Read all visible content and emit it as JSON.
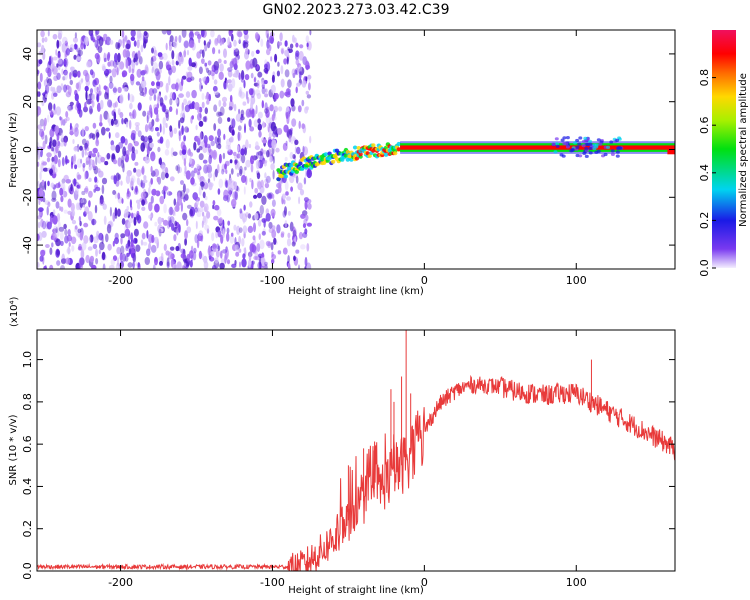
{
  "title": "GN02.2023.273.03.42.C39",
  "colors": {
    "signal": "#e83a3a",
    "speckle": "#6a2ee8",
    "axes": "#000000"
  },
  "chart_data": [
    {
      "type": "heatmap",
      "title": "GN02.2023.273.03.42.C39",
      "xlabel": "Height of straight line (km)",
      "ylabel": "Frequency (Hz)",
      "xlim": [
        -255,
        165
      ],
      "ylim": [
        -50,
        50
      ],
      "x_ticks": [
        -200,
        -100,
        0,
        100
      ],
      "y_ticks": [
        -40,
        -20,
        0,
        20,
        40
      ],
      "x_tick_labels": [
        "-200",
        "-100",
        "0",
        "100"
      ],
      "y_tick_labels": [
        "-40",
        "-20",
        "0",
        "20",
        "40"
      ],
      "grid": false,
      "colorbar": {
        "label": "Normalized spectral amplitude",
        "range": [
          0,
          1
        ],
        "ticks": [
          0.0,
          0.2,
          0.4,
          0.6,
          0.8
        ],
        "tick_labels": [
          "0.0",
          "0.2",
          "0.4",
          "0.6",
          "0.8"
        ],
        "colormap": "rainbow (violet → blue → cyan → green → yellow → orange → red → magenta)"
      },
      "regions": [
        {
          "x_range": [
            -255,
            -96
          ],
          "description": "broadband noise across all frequencies",
          "amplitude": 0.3
        },
        {
          "x_range": [
            -96,
            -75
          ],
          "description": "sparse noise",
          "amplitude": 0.2
        },
        {
          "x_range": [
            -96,
            -15
          ],
          "description": "signal line rising from -10 Hz to 0 Hz",
          "amplitude": 0.7
        },
        {
          "x_range": [
            -15,
            165
          ],
          "description": "steady signal line at 0 Hz",
          "amplitude": 1.0
        }
      ],
      "signal_ridge": {
        "x": [
          -96,
          -80,
          -60,
          -40,
          -20,
          -15,
          0,
          50,
          100,
          160,
          165
        ],
        "y": [
          -10,
          -6,
          -3,
          -1,
          0,
          1,
          1,
          1,
          1,
          1,
          -1
        ]
      }
    },
    {
      "type": "line",
      "xlabel": "Height of straight line (km)",
      "ylabel": "SNR (10 * v/v)",
      "y_multiplier": "(x10⁴)",
      "xlim": [
        -255,
        165
      ],
      "ylim": [
        0,
        1.14
      ],
      "x_ticks": [
        -200,
        -100,
        0,
        100
      ],
      "y_ticks": [
        0.0,
        0.2,
        0.4,
        0.6,
        0.8,
        1.0
      ],
      "x_tick_labels": [
        "-200",
        "-100",
        "0",
        "100"
      ],
      "y_tick_labels": [
        "0.0",
        "0.2",
        "0.4",
        "0.6",
        "0.8",
        "1.0"
      ],
      "grid": false,
      "series": [
        {
          "color": "#e83a3a",
          "x": [
            -255,
            -200,
            -150,
            -100,
            -90,
            -80,
            -70,
            -60,
            -50,
            -45,
            -40,
            -35,
            -30,
            -25,
            -20,
            -15,
            -10,
            -5,
            0,
            5,
            10,
            20,
            30,
            40,
            50,
            60,
            70,
            80,
            90,
            100,
            110,
            120,
            130,
            140,
            150,
            160,
            165
          ],
          "y": [
            0.02,
            0.02,
            0.02,
            0.02,
            0.02,
            0.03,
            0.08,
            0.15,
            0.24,
            0.3,
            0.33,
            0.38,
            0.4,
            0.42,
            0.47,
            0.5,
            0.54,
            0.6,
            0.66,
            0.73,
            0.79,
            0.85,
            0.88,
            0.88,
            0.87,
            0.85,
            0.84,
            0.83,
            0.84,
            0.84,
            0.8,
            0.76,
            0.72,
            0.68,
            0.64,
            0.6,
            0.57
          ],
          "spikes": [
            {
              "x": -50,
              "y": 0.5
            },
            {
              "x": -40,
              "y": 0.58
            },
            {
              "x": -33,
              "y": 0.57
            },
            {
              "x": -22,
              "y": 0.86
            },
            {
              "x": -20,
              "y": 0.8
            },
            {
              "x": -15,
              "y": 0.92
            },
            {
              "x": -12,
              "y": 1.14
            },
            {
              "x": -9,
              "y": 0.84
            },
            {
              "x": 110,
              "y": 1.0
            }
          ]
        }
      ]
    }
  ]
}
